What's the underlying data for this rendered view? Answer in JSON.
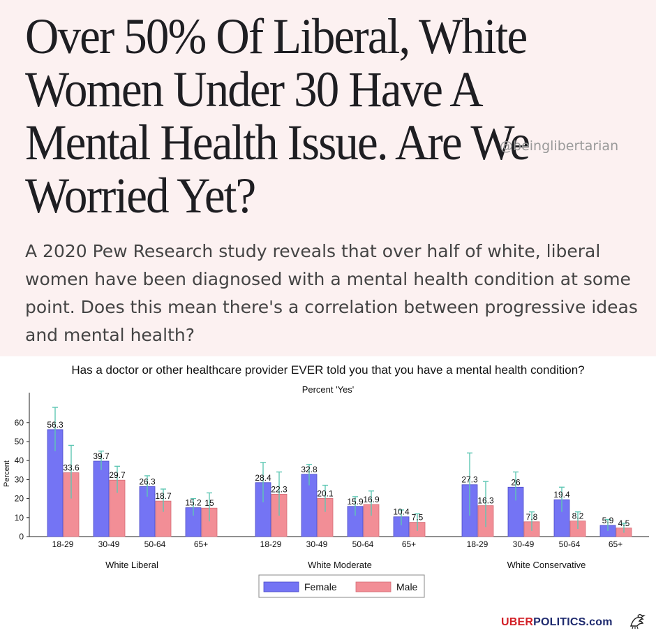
{
  "article": {
    "headline": "Over 50% Of Liberal, White Women Under 30 Have A Mental Health Issue. Are We Worried Yet?",
    "handle": "@beinglibertarian",
    "subtitle": "A 2020 Pew Research study reveals that over half of white, liberal women have been diagnosed with a mental health condition at some point. Does this mean there's a correlation between progressive ideas and mental health?"
  },
  "footer": {
    "brand_part1": "UBER",
    "brand_part2": "POLITICS.com",
    "logo_icon": "eagle-icon"
  },
  "colors": {
    "female": "#7474f4",
    "male": "#f28e96",
    "error_bar": "#5fc7b4"
  },
  "chart_data": {
    "type": "bar",
    "title": "Has a doctor or other healthcare provider EVER told you that you have a mental health condition?",
    "subtitle": "Percent 'Yes'",
    "ylabel": "Percent",
    "ylim": [
      0,
      70
    ],
    "yticks": [
      0,
      10,
      20,
      30,
      40,
      50,
      60
    ],
    "legend": {
      "position": "bottom-center",
      "entries": [
        "Female",
        "Male"
      ]
    },
    "groups": [
      {
        "name": "White Liberal",
        "categories": [
          "18-29",
          "30-49",
          "50-64",
          "65+"
        ],
        "female": [
          56.3,
          39.7,
          26.3,
          15.2
        ],
        "male": [
          33.6,
          29.7,
          18.7,
          15.0
        ],
        "female_ci": [
          [
            45,
            68
          ],
          [
            35,
            45
          ],
          [
            21,
            32
          ],
          [
            11,
            20
          ]
        ],
        "male_ci": [
          [
            20,
            48
          ],
          [
            23,
            37
          ],
          [
            13,
            25
          ],
          [
            8,
            23
          ]
        ]
      },
      {
        "name": "White Moderate",
        "categories": [
          "18-29",
          "30-49",
          "50-64",
          "65+"
        ],
        "female": [
          28.4,
          32.8,
          15.9,
          10.4
        ],
        "male": [
          22.3,
          20.1,
          16.9,
          7.5
        ],
        "female_ci": [
          [
            18,
            39
          ],
          [
            27,
            38
          ],
          [
            11,
            21
          ],
          [
            6,
            14
          ]
        ],
        "male_ci": [
          [
            11,
            34
          ],
          [
            13,
            27
          ],
          [
            11,
            24
          ],
          [
            3,
            12
          ]
        ]
      },
      {
        "name": "White Conservative",
        "categories": [
          "18-29",
          "30-49",
          "50-64",
          "65+"
        ],
        "female": [
          27.3,
          26.0,
          19.4,
          5.9
        ],
        "male": [
          16.3,
          7.8,
          8.2,
          4.5
        ],
        "female_ci": [
          [
            11,
            44
          ],
          [
            19,
            34
          ],
          [
            13,
            26
          ],
          [
            3,
            9
          ]
        ],
        "male_ci": [
          [
            5,
            29
          ],
          [
            3,
            13
          ],
          [
            4,
            13
          ],
          [
            2,
            7
          ]
        ]
      }
    ]
  }
}
